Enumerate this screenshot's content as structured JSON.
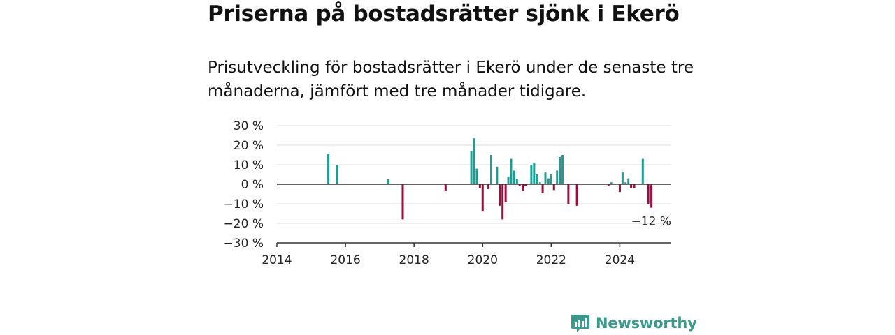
{
  "header": {
    "title": "Priserna på bostadsrätter sjönk i Ekerö",
    "subtitle": "Prisutveckling för bostadsrätter i Ekerö under de senaste tre månaderna, jämfört med tre månader tidigare."
  },
  "brand": {
    "name": "Newsworthy",
    "icon": "newsworthy-bar-chart-icon"
  },
  "colors": {
    "positive": "#1a9e93",
    "negative": "#9b0d3e",
    "gridline": "#dcdcdc",
    "zero_line": "#333333",
    "brand": "#3b9a8c"
  },
  "chart_data": {
    "type": "bar",
    "title": "",
    "xlabel": "",
    "ylabel": "",
    "xlim": [
      2014,
      2025.5
    ],
    "ylim": [
      -30,
      30
    ],
    "y_ticks": [
      30,
      20,
      10,
      0,
      -10,
      -20,
      -30
    ],
    "y_tick_labels": [
      "30 %",
      "20 %",
      "10 %",
      "0 %",
      "−10 %",
      "−20 %",
      "−30 %"
    ],
    "x_ticks": [
      2014,
      2016,
      2018,
      2020,
      2022,
      2024
    ],
    "x_tick_labels": [
      "2014",
      "2016",
      "2018",
      "2020",
      "2022",
      "2024"
    ],
    "grid": true,
    "annotation": {
      "text": "−12 %",
      "x": 2024.95,
      "value": -12
    },
    "points": [
      {
        "x": 2015.5,
        "value": 15.5
      },
      {
        "x": 2015.75,
        "value": 10
      },
      {
        "x": 2017.25,
        "value": 2.5
      },
      {
        "x": 2017.67,
        "value": -18
      },
      {
        "x": 2018.92,
        "value": -3.5
      },
      {
        "x": 2019.67,
        "value": 17
      },
      {
        "x": 2019.75,
        "value": 23.5
      },
      {
        "x": 2019.83,
        "value": 8
      },
      {
        "x": 2019.92,
        "value": -2
      },
      {
        "x": 2020.0,
        "value": -14
      },
      {
        "x": 2020.17,
        "value": -2.5
      },
      {
        "x": 2020.25,
        "value": 15
      },
      {
        "x": 2020.42,
        "value": 9
      },
      {
        "x": 2020.5,
        "value": -11
      },
      {
        "x": 2020.58,
        "value": -18
      },
      {
        "x": 2020.67,
        "value": -9
      },
      {
        "x": 2020.75,
        "value": 4
      },
      {
        "x": 2020.83,
        "value": 13
      },
      {
        "x": 2020.92,
        "value": 7
      },
      {
        "x": 2021.0,
        "value": 2.5
      },
      {
        "x": 2021.08,
        "value": -1
      },
      {
        "x": 2021.17,
        "value": -3.5
      },
      {
        "x": 2021.25,
        "value": -1
      },
      {
        "x": 2021.42,
        "value": 10
      },
      {
        "x": 2021.5,
        "value": 11
      },
      {
        "x": 2021.58,
        "value": 5
      },
      {
        "x": 2021.67,
        "value": 1
      },
      {
        "x": 2021.75,
        "value": -4.5
      },
      {
        "x": 2021.83,
        "value": 6
      },
      {
        "x": 2021.92,
        "value": 3
      },
      {
        "x": 2022.0,
        "value": 5
      },
      {
        "x": 2022.08,
        "value": -3
      },
      {
        "x": 2022.17,
        "value": 7
      },
      {
        "x": 2022.25,
        "value": 14
      },
      {
        "x": 2022.33,
        "value": 15
      },
      {
        "x": 2022.5,
        "value": -10
      },
      {
        "x": 2022.75,
        "value": -11
      },
      {
        "x": 2023.67,
        "value": -1
      },
      {
        "x": 2023.75,
        "value": 1
      },
      {
        "x": 2024.0,
        "value": -4
      },
      {
        "x": 2024.08,
        "value": 6
      },
      {
        "x": 2024.17,
        "value": 1
      },
      {
        "x": 2024.25,
        "value": 3
      },
      {
        "x": 2024.33,
        "value": -2
      },
      {
        "x": 2024.42,
        "value": -2
      },
      {
        "x": 2024.67,
        "value": 13
      },
      {
        "x": 2024.83,
        "value": -10
      },
      {
        "x": 2024.92,
        "value": -12
      }
    ]
  }
}
